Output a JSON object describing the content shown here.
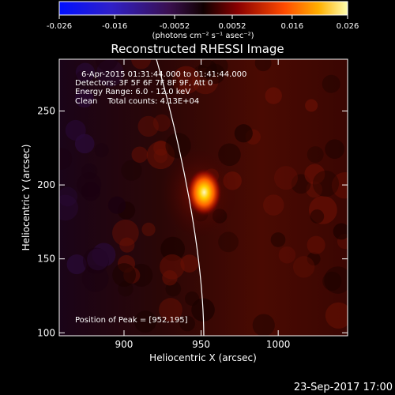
{
  "chart_data": {
    "type": "heatmap",
    "title": "Reconstructed RHESSI Image",
    "xlabel": "Heliocentric X (arcsec)",
    "ylabel": "Heliocentric Y (arcsec)",
    "xlim": [
      858,
      1045
    ],
    "ylim": [
      98,
      285
    ],
    "x_ticks": [
      900,
      950,
      1000
    ],
    "y_ticks": [
      100,
      150,
      200,
      250
    ],
    "peak": {
      "x": 952,
      "y": 195
    },
    "colorbar": {
      "ticks": [
        "-0.026",
        "-0.016",
        "-0.0052",
        "0.0052",
        "0.016",
        "0.026"
      ],
      "range": [
        -0.026,
        0.026
      ],
      "unit_label": "(photons cm⁻² s⁻¹ asec⁻²)"
    },
    "annotations": [
      "6-Apr-2015 01:31:44.000 to 01:41:44.000",
      "Detectors: 3F 5F 6F 7F 8F 9F, Att 0",
      "Energy Range: 6.0 - 12.0 keV",
      "Clean    Total counts: 4.13E+04"
    ],
    "peak_label": "Position of Peak = [952,195]",
    "limb": "solar limb arc",
    "grid": false
  },
  "footer": {
    "timestamp": "23-Sep-2017 17:00"
  }
}
